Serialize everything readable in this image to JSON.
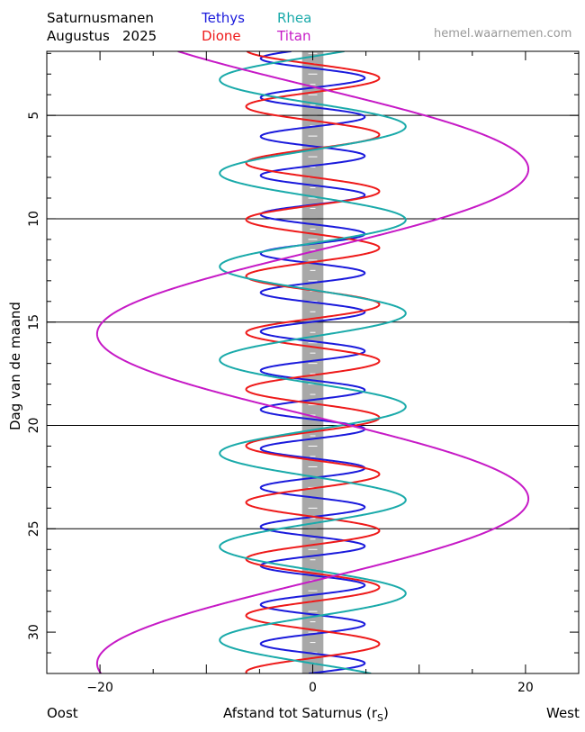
{
  "header": {
    "title_line1": "Saturnusmanen",
    "title_line2": "Augustus",
    "year": "2025",
    "website": "hemel.waarnemen.com"
  },
  "colors": {
    "Tethys": "#1a1adc",
    "Dione": "#ee1a1a",
    "Rhea": "#1aaaaa",
    "Titan": "#c61ac6",
    "saturn_band": "#a8a8a8"
  },
  "footer": {
    "left": "Oost",
    "right": "West",
    "xlabel_main": "Afstand tot Saturnus (r",
    "xlabel_sub": "S",
    "xlabel_close": ")"
  },
  "chart_data": {
    "type": "line",
    "title": "Saturnusmanen Augustus 2025",
    "xlabel": "Afstand tot Saturnus (rS)",
    "ylabel": "Dag van de maand",
    "xlim": [
      -25,
      25
    ],
    "ylim": [
      1.9,
      32
    ],
    "y_inverted": true,
    "x_ticks": [
      -20,
      0,
      20
    ],
    "y_ticks": [
      5,
      10,
      15,
      20,
      25,
      30
    ],
    "grid_lines_y": [
      5,
      10,
      15,
      20,
      25
    ],
    "saturn_band_half_width": 1,
    "series": [
      {
        "name": "Tethys",
        "amplitude": 4.89,
        "period_days": 1.8878,
        "phase_day": 1.3
      },
      {
        "name": "Dione",
        "amplitude": 6.26,
        "period_days": 2.7369,
        "phase_day": 3.2
      },
      {
        "name": "Rhea",
        "amplitude": 8.74,
        "period_days": 4.5175,
        "phase_day": 1.02
      },
      {
        "name": "Titan",
        "amplitude": 20.27,
        "period_days": 15.945,
        "phase_day": 7.6
      }
    ]
  }
}
